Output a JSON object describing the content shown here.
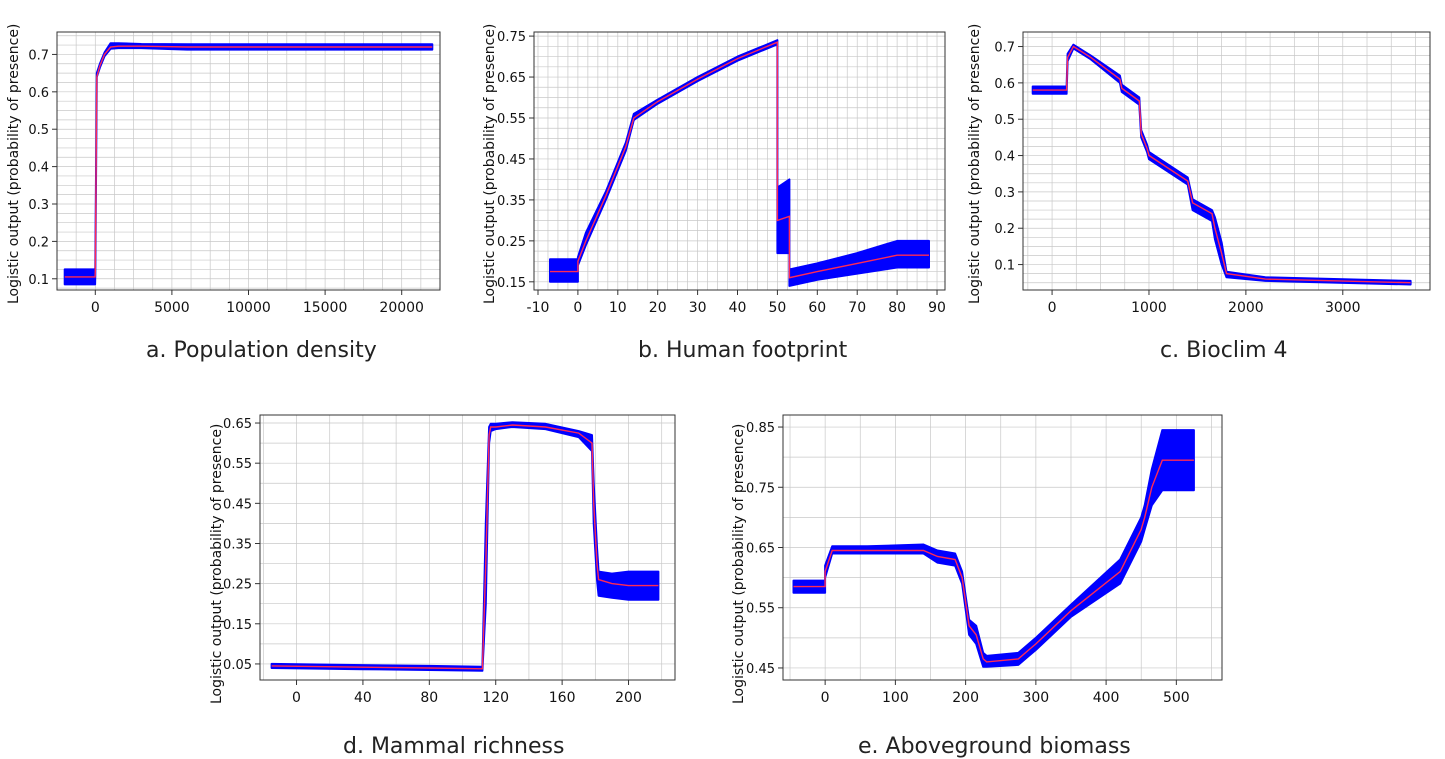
{
  "colors": {
    "band": "#0000ff",
    "mean_line": "#ff2a55",
    "grid": "#c8c8c8",
    "axis": "#333333",
    "text": "#111111"
  },
  "chart_data": [
    {
      "id": "a",
      "type": "line",
      "caption": "a. Population density",
      "ylabel": "Logistic output (probability of presence)",
      "xlim": [
        -2500,
        22500
      ],
      "ylim": [
        0.07,
        0.76
      ],
      "xticks": [
        0,
        5000,
        10000,
        15000,
        20000
      ],
      "yticks": [
        0.1,
        0.2,
        0.3,
        0.4,
        0.5,
        0.6,
        0.7
      ],
      "x": [
        -2000,
        -10,
        0,
        100,
        300,
        600,
        1000,
        1500,
        3000,
        6000,
        10000,
        15000,
        22000
      ],
      "mean": [
        0.105,
        0.105,
        0.12,
        0.64,
        0.67,
        0.7,
        0.72,
        0.722,
        0.722,
        0.72,
        0.72,
        0.72,
        0.72
      ],
      "lower": [
        0.085,
        0.085,
        0.11,
        0.64,
        0.665,
        0.695,
        0.715,
        0.717,
        0.717,
        0.713,
        0.713,
        0.713,
        0.713
      ],
      "upper": [
        0.125,
        0.125,
        0.13,
        0.65,
        0.675,
        0.705,
        0.73,
        0.73,
        0.728,
        0.727,
        0.727,
        0.727,
        0.727
      ]
    },
    {
      "id": "b",
      "type": "line",
      "caption": "b. Human footprint",
      "ylabel": "Logistic output (probability of presence)",
      "xlim": [
        -11,
        92
      ],
      "ylim": [
        0.13,
        0.76
      ],
      "xticks": [
        -10,
        0,
        10,
        20,
        30,
        40,
        50,
        60,
        70,
        80,
        90
      ],
      "yticks": [
        0.15,
        0.25,
        0.35,
        0.45,
        0.55,
        0.65,
        0.75
      ],
      "x": [
        -7,
        -0.01,
        0,
        2,
        7,
        12,
        14,
        20,
        30,
        40,
        50,
        50.01,
        53,
        53.01,
        60,
        70,
        80,
        88
      ],
      "mean": [
        0.175,
        0.175,
        0.2,
        0.25,
        0.36,
        0.48,
        0.55,
        0.59,
        0.645,
        0.695,
        0.735,
        0.3,
        0.31,
        0.16,
        0.175,
        0.195,
        0.215,
        0.215
      ],
      "lower": [
        0.15,
        0.15,
        0.19,
        0.24,
        0.35,
        0.47,
        0.545,
        0.585,
        0.64,
        0.69,
        0.73,
        0.22,
        0.22,
        0.14,
        0.155,
        0.17,
        0.185,
        0.185
      ],
      "upper": [
        0.205,
        0.205,
        0.21,
        0.27,
        0.37,
        0.49,
        0.56,
        0.595,
        0.65,
        0.7,
        0.74,
        0.38,
        0.4,
        0.18,
        0.195,
        0.22,
        0.25,
        0.25
      ]
    },
    {
      "id": "c",
      "type": "line",
      "caption": "c. Bioclim 4",
      "ylabel": "Logistic output (probability of presence)",
      "xlim": [
        -300,
        3900
      ],
      "ylim": [
        0.03,
        0.74
      ],
      "xticks": [
        0,
        1000,
        2000,
        3000
      ],
      "yticks": [
        0.1,
        0.2,
        0.3,
        0.4,
        0.5,
        0.6,
        0.7
      ],
      "x": [
        -200,
        150,
        160,
        220,
        400,
        700,
        720,
        900,
        920,
        980,
        1000,
        1400,
        1450,
        1650,
        1680,
        1750,
        1800,
        2200,
        3700
      ],
      "mean": [
        0.58,
        0.58,
        0.67,
        0.7,
        0.67,
        0.61,
        0.585,
        0.55,
        0.46,
        0.42,
        0.4,
        0.33,
        0.27,
        0.24,
        0.2,
        0.13,
        0.075,
        0.06,
        0.05
      ],
      "lower": [
        0.57,
        0.57,
        0.66,
        0.695,
        0.665,
        0.6,
        0.575,
        0.54,
        0.45,
        0.41,
        0.39,
        0.32,
        0.25,
        0.22,
        0.17,
        0.1,
        0.065,
        0.055,
        0.045
      ],
      "upper": [
        0.59,
        0.59,
        0.68,
        0.705,
        0.675,
        0.62,
        0.595,
        0.56,
        0.47,
        0.43,
        0.41,
        0.34,
        0.28,
        0.25,
        0.23,
        0.16,
        0.08,
        0.065,
        0.055
      ]
    },
    {
      "id": "d",
      "type": "line",
      "caption": "d. Mammal richness",
      "ylabel": "Logistic output (probability of presence)",
      "xlim": [
        -22,
        228
      ],
      "ylim": [
        0.01,
        0.67
      ],
      "xticks": [
        0,
        40,
        80,
        120,
        160,
        200
      ],
      "yticks": [
        0.05,
        0.15,
        0.25,
        0.35,
        0.45,
        0.55,
        0.65
      ],
      "x": [
        -15,
        40,
        80,
        112,
        114,
        116,
        117,
        120,
        130,
        150,
        170,
        178,
        179,
        181,
        182,
        190,
        200,
        218
      ],
      "mean": [
        0.045,
        0.042,
        0.04,
        0.038,
        0.3,
        0.62,
        0.64,
        0.64,
        0.645,
        0.64,
        0.625,
        0.6,
        0.45,
        0.3,
        0.26,
        0.25,
        0.245,
        0.245
      ],
      "lower": [
        0.04,
        0.037,
        0.035,
        0.033,
        0.2,
        0.6,
        0.63,
        0.635,
        0.64,
        0.635,
        0.615,
        0.58,
        0.4,
        0.26,
        0.22,
        0.215,
        0.21,
        0.21
      ],
      "upper": [
        0.05,
        0.047,
        0.045,
        0.043,
        0.4,
        0.64,
        0.648,
        0.648,
        0.652,
        0.648,
        0.63,
        0.62,
        0.5,
        0.34,
        0.28,
        0.275,
        0.28,
        0.28
      ]
    },
    {
      "id": "e",
      "type": "line",
      "caption": "e. Aboveground biomass",
      "ylabel": "Logistic output (probability of presence)",
      "xlim": [
        -60,
        565
      ],
      "ylim": [
        0.43,
        0.87
      ],
      "xticks": [
        0,
        100,
        200,
        300,
        400,
        500
      ],
      "yticks": [
        0.45,
        0.55,
        0.65,
        0.75,
        0.85
      ],
      "x": [
        -45,
        -0.01,
        0,
        10,
        60,
        140,
        160,
        185,
        195,
        205,
        215,
        225,
        230,
        275,
        290,
        300,
        350,
        420,
        450,
        455,
        465,
        480,
        500,
        525
      ],
      "mean": [
        0.585,
        0.585,
        0.61,
        0.645,
        0.645,
        0.645,
        0.635,
        0.63,
        0.6,
        0.52,
        0.505,
        0.465,
        0.46,
        0.465,
        0.48,
        0.49,
        0.545,
        0.61,
        0.68,
        0.7,
        0.75,
        0.795,
        0.795,
        0.795
      ],
      "lower": [
        0.575,
        0.575,
        0.6,
        0.64,
        0.64,
        0.64,
        0.625,
        0.62,
        0.59,
        0.505,
        0.49,
        0.452,
        0.452,
        0.455,
        0.47,
        0.48,
        0.535,
        0.59,
        0.66,
        0.68,
        0.72,
        0.745,
        0.745,
        0.745
      ],
      "upper": [
        0.595,
        0.595,
        0.62,
        0.652,
        0.652,
        0.655,
        0.645,
        0.64,
        0.61,
        0.53,
        0.52,
        0.475,
        0.47,
        0.475,
        0.49,
        0.5,
        0.555,
        0.63,
        0.7,
        0.72,
        0.78,
        0.845,
        0.845,
        0.845
      ]
    }
  ]
}
